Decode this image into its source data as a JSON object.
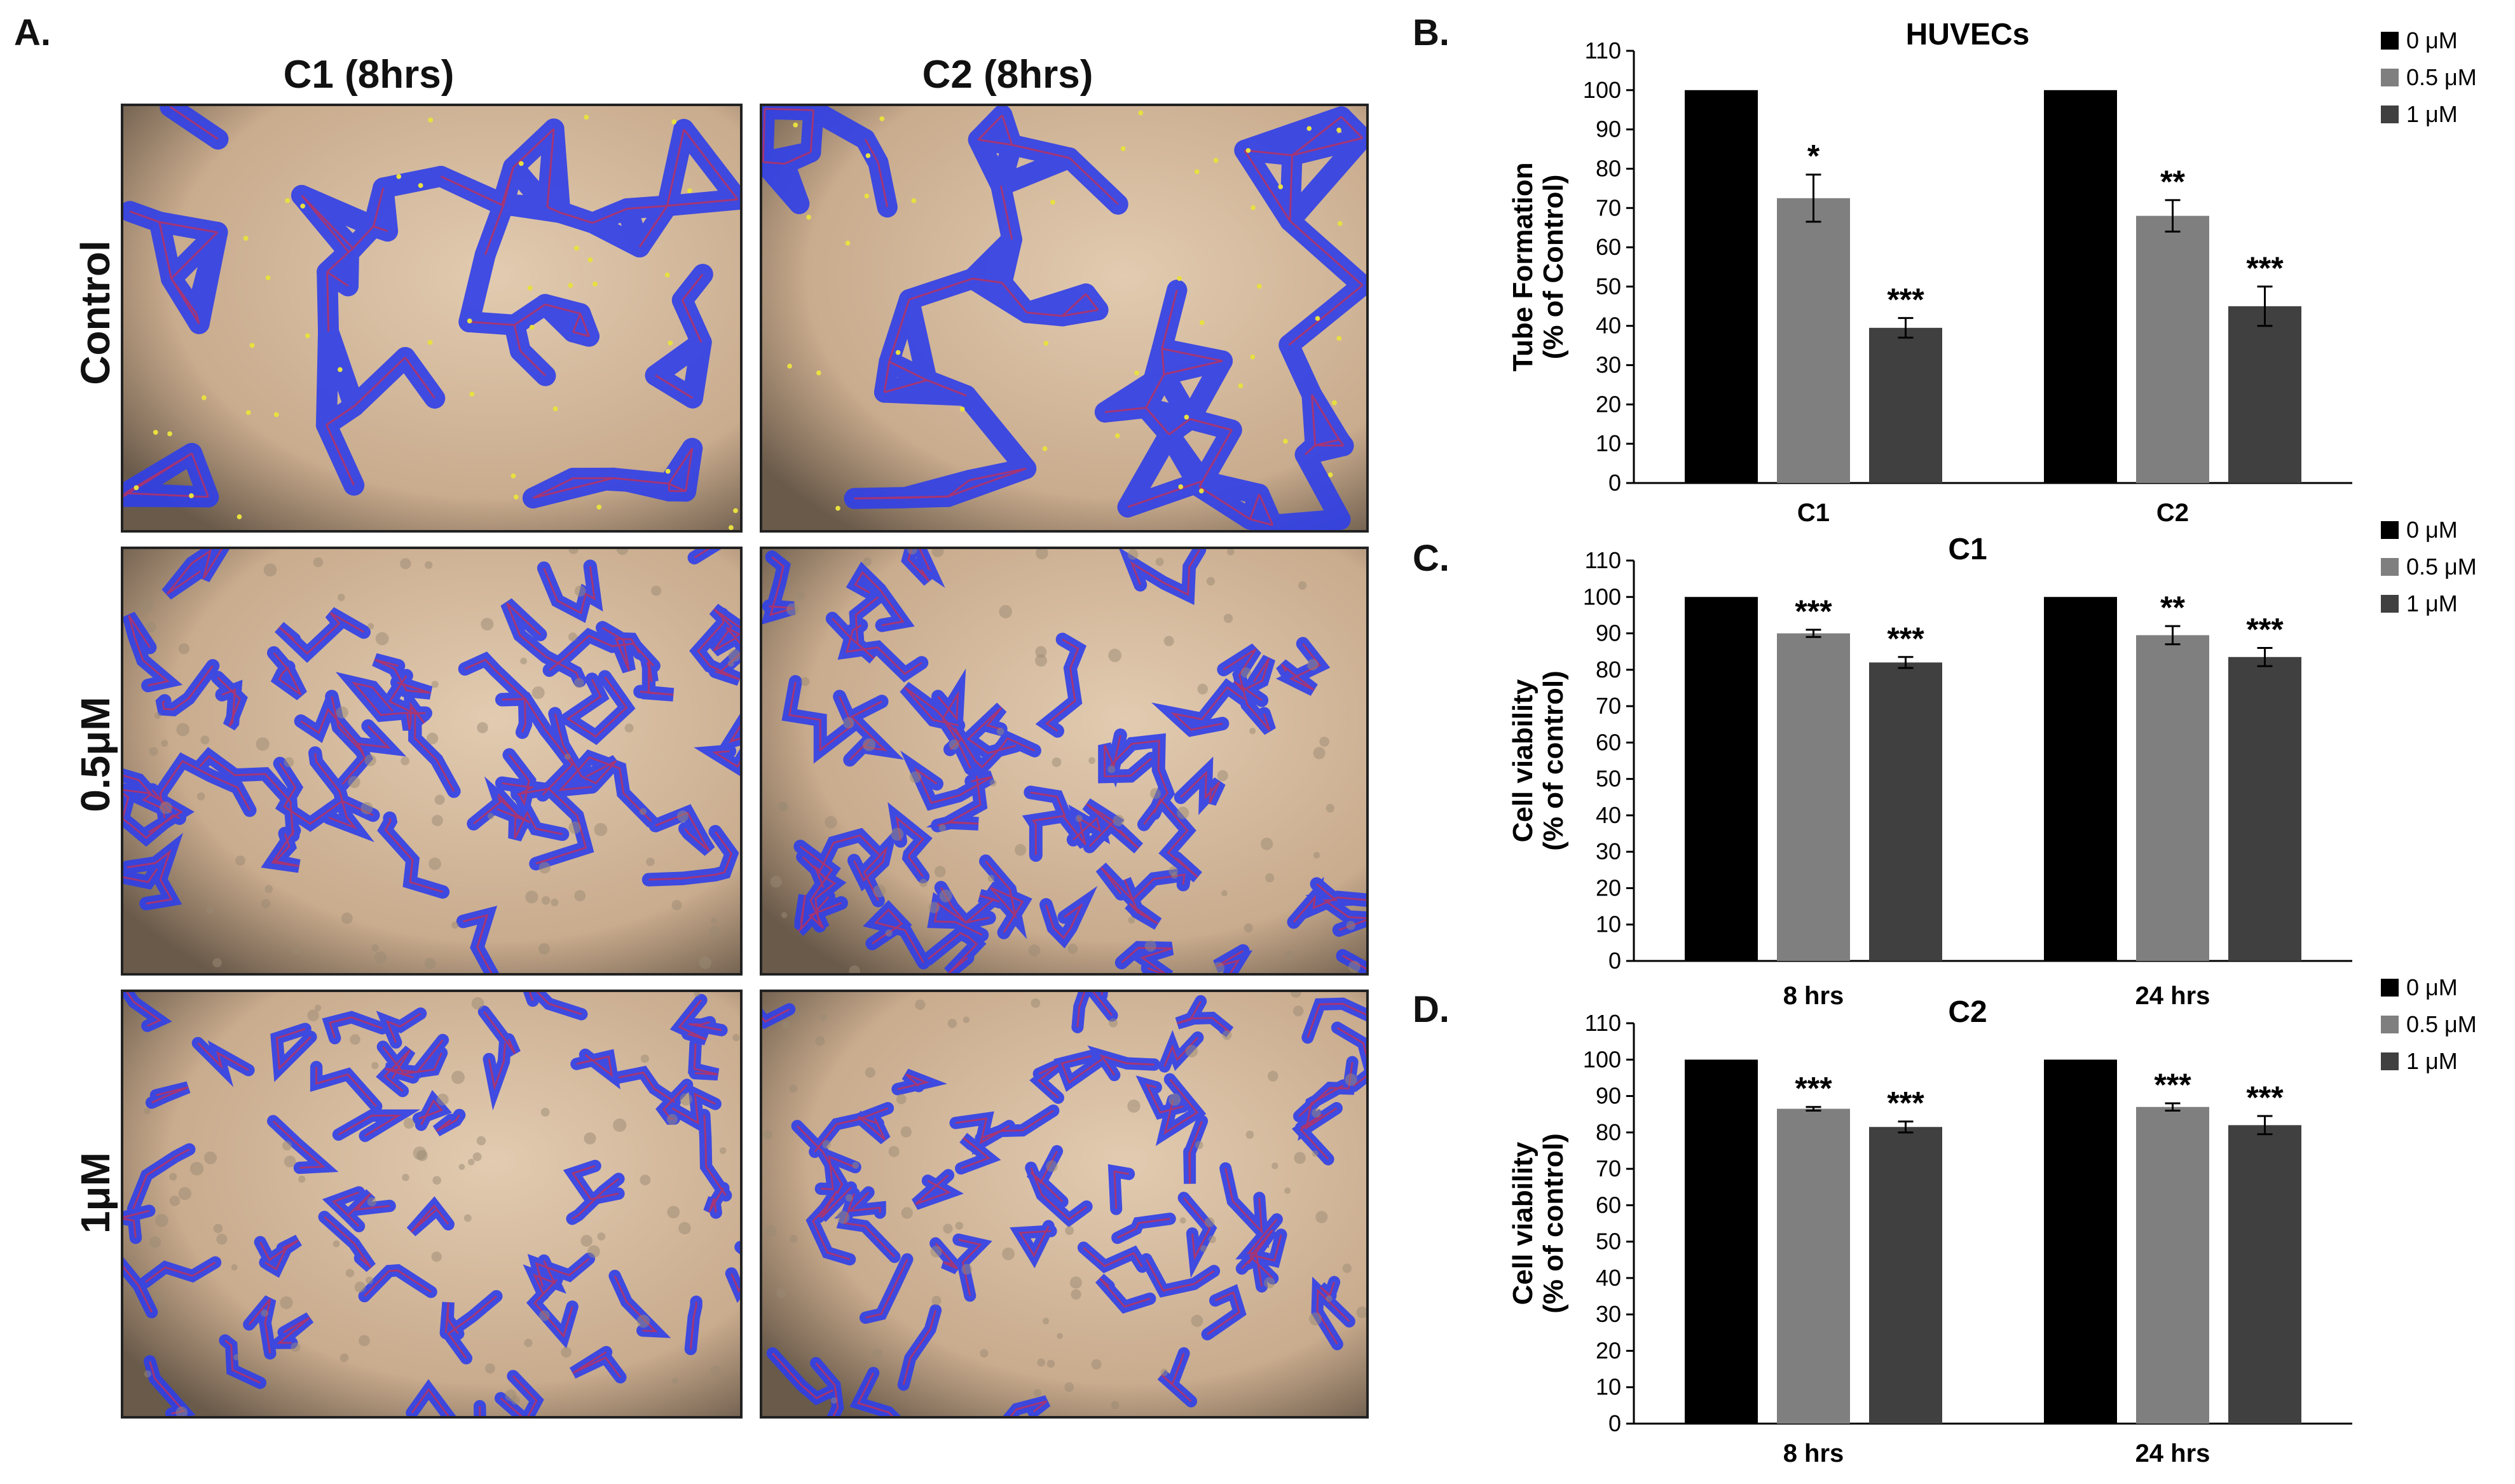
{
  "panel_a": {
    "letter": "A.",
    "columns": [
      "C1 (8hrs)",
      "C2 (8hrs)"
    ],
    "rows": [
      "Control",
      "0.5μM",
      "1μM"
    ]
  },
  "panels": [
    {
      "letter": "B."
    },
    {
      "letter": "C."
    },
    {
      "letter": "D."
    }
  ],
  "colors": {
    "series_0": "#000000",
    "series_0_5": "#7f7f7f",
    "series_1": "#404040",
    "tube": "#2f3fe8",
    "background": "#d2b79a"
  },
  "chart_data": [
    {
      "type": "bar",
      "title": "HUVECs",
      "ylabel": [
        "Tube Formation",
        "(% of Control)"
      ],
      "categories": [
        "C1",
        "C2"
      ],
      "ylim": [
        0,
        110
      ],
      "yticks": [
        0,
        10,
        20,
        30,
        40,
        50,
        60,
        70,
        80,
        90,
        100,
        110
      ],
      "legend_position": "top-right",
      "series": [
        {
          "name": "0 μM",
          "values": [
            100,
            100
          ],
          "errors": [
            0,
            0
          ],
          "annotations": [
            "",
            ""
          ]
        },
        {
          "name": "0.5 μM",
          "values": [
            72.5,
            68
          ],
          "errors": [
            6,
            4
          ],
          "annotations": [
            "*",
            "**"
          ]
        },
        {
          "name": "1 μM",
          "values": [
            39.5,
            45
          ],
          "errors": [
            2.5,
            5
          ],
          "annotations": [
            "***",
            "***"
          ]
        }
      ]
    },
    {
      "type": "bar",
      "title": "C1",
      "ylabel": [
        "Cell viability",
        "(% of control)"
      ],
      "categories": [
        "8 hrs",
        "24 hrs"
      ],
      "ylim": [
        0,
        110
      ],
      "yticks": [
        0,
        10,
        20,
        30,
        40,
        50,
        60,
        70,
        80,
        90,
        100,
        110
      ],
      "legend_position": "top-right",
      "series": [
        {
          "name": "0 μM",
          "values": [
            100,
            100
          ],
          "errors": [
            0,
            0
          ],
          "annotations": [
            "",
            ""
          ]
        },
        {
          "name": "0.5 μM",
          "values": [
            90,
            89.5
          ],
          "errors": [
            1,
            2.5
          ],
          "annotations": [
            "***",
            "**"
          ]
        },
        {
          "name": "1 μM",
          "values": [
            82,
            83.5
          ],
          "errors": [
            1.5,
            2.5
          ],
          "annotations": [
            "***",
            "***"
          ]
        }
      ]
    },
    {
      "type": "bar",
      "title": "C2",
      "ylabel": [
        "Cell viability",
        "(% of control)"
      ],
      "categories": [
        "8 hrs",
        "24 hrs"
      ],
      "ylim": [
        0,
        110
      ],
      "yticks": [
        0,
        10,
        20,
        30,
        40,
        50,
        60,
        70,
        80,
        90,
        100,
        110
      ],
      "legend_position": "top-right",
      "series": [
        {
          "name": "0 μM",
          "values": [
            100,
            100
          ],
          "errors": [
            0,
            0
          ],
          "annotations": [
            "",
            ""
          ]
        },
        {
          "name": "0.5 μM",
          "values": [
            86.5,
            87
          ],
          "errors": [
            0.5,
            1
          ],
          "annotations": [
            "***",
            "***"
          ]
        },
        {
          "name": "1 μM",
          "values": [
            81.5,
            82
          ],
          "errors": [
            1.5,
            2.5
          ],
          "annotations": [
            "***",
            "***"
          ]
        }
      ]
    }
  ]
}
